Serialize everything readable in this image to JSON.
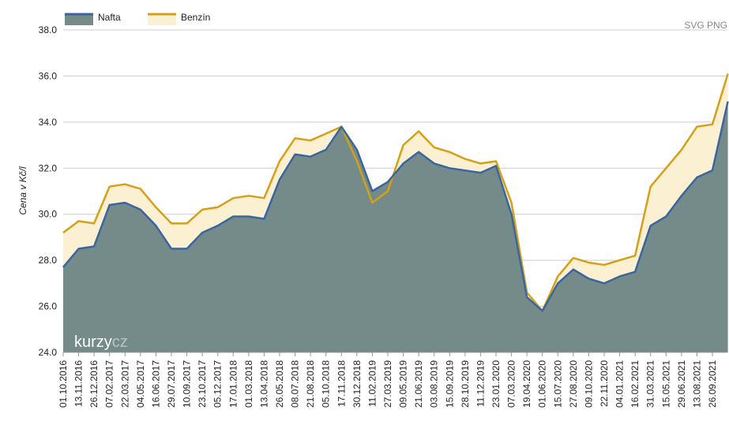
{
  "chart_data": {
    "type": "area",
    "y_label": "Cena v Kč/l",
    "export_links": "SVG PNG",
    "watermark": [
      "kurzy",
      "cz"
    ],
    "categories": [
      "01.10.2016",
      "13.11.2016",
      "26.12.2016",
      "07.02.2017",
      "22.03.2017",
      "04.05.2017",
      "16.06.2017",
      "29.07.2017",
      "10.09.2017",
      "23.10.2017",
      "05.12.2017",
      "17.01.2018",
      "01.03.2018",
      "13.04.2018",
      "26.05.2018",
      "08.07.2018",
      "21.08.2018",
      "05.10.2018",
      "17.11.2018",
      "30.12.2018",
      "11.02.2019",
      "27.03.2019",
      "09.05.2019",
      "21.06.2019",
      "03.08.2019",
      "15.09.2019",
      "28.10.2019",
      "11.12.2019",
      "23.01.2020",
      "07.03.2020",
      "19.04.2020",
      "01.06.2020",
      "15.07.2020",
      "27.08.2020",
      "09.10.2020",
      "22.11.2020",
      "04.01.2021",
      "16.02.2021",
      "31.03.2021",
      "15.05.2021",
      "29.06.2021",
      "13.08.2021",
      "26.09.2021",
      null
    ],
    "series": [
      {
        "name": "Benzín",
        "color": "#d4a017",
        "fill": "#fbf0d2",
        "values": [
          29.2,
          29.7,
          29.6,
          31.2,
          31.3,
          31.1,
          30.3,
          29.6,
          29.6,
          30.2,
          30.3,
          30.7,
          30.8,
          30.7,
          32.3,
          33.3,
          33.2,
          33.5,
          33.8,
          32.3,
          30.5,
          31.0,
          33.0,
          33.6,
          32.9,
          32.7,
          32.4,
          32.2,
          32.3,
          30.5,
          26.6,
          25.8,
          27.3,
          28.1,
          27.9,
          27.8,
          28.0,
          28.2,
          31.2,
          32.0,
          32.8,
          33.8,
          33.9,
          36.1
        ]
      },
      {
        "name": "Nafta",
        "color": "#3a66a0",
        "fill": "#748b8a",
        "values": [
          27.7,
          28.5,
          28.6,
          30.4,
          30.5,
          30.2,
          29.5,
          28.5,
          28.5,
          29.2,
          29.5,
          29.9,
          29.9,
          29.8,
          31.5,
          32.6,
          32.5,
          32.8,
          33.8,
          32.8,
          31.0,
          31.4,
          32.2,
          32.7,
          32.2,
          32.0,
          31.9,
          31.8,
          32.1,
          30.0,
          26.4,
          25.8,
          27.0,
          27.6,
          27.2,
          27.0,
          27.3,
          27.5,
          29.5,
          29.9,
          30.8,
          31.6,
          31.9,
          34.9
        ]
      }
    ],
    "ylim": [
      24,
      38
    ],
    "yticks": [
      {
        "value": 24,
        "label": "24.0"
      },
      {
        "value": 26,
        "label": "26.0"
      },
      {
        "value": 28,
        "label": "28.0"
      },
      {
        "value": 30,
        "label": "30.0"
      },
      {
        "value": 32,
        "label": "32.0"
      },
      {
        "value": 34,
        "label": "34.0"
      },
      {
        "value": 36,
        "label": "36.0"
      },
      {
        "value": 38,
        "label": "38.0"
      }
    ],
    "grid": true
  }
}
